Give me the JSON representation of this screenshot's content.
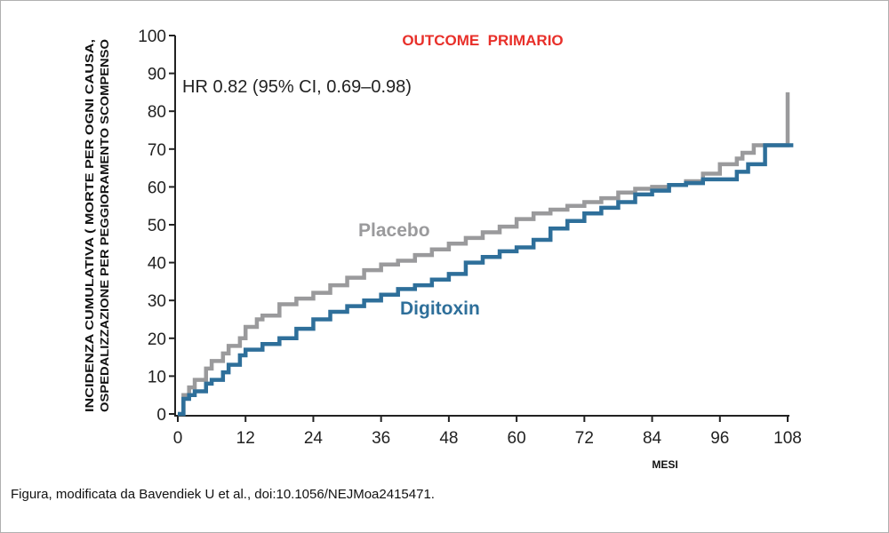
{
  "chart_data": {
    "type": "line",
    "title": "OUTCOME  PRIMARIO",
    "annotation": "HR 0.82 (95% CI, 0.69–0.98)",
    "xlabel": "MESI",
    "ylabel_lines": [
      "INCIDENZA CUMULATIVA ( MORTE PER OGNI CAUSA,",
      "OSPEDALIZZAZIONE PER PEGGIORAMENTO SCOMPENSO"
    ],
    "xlim": [
      0,
      108
    ],
    "ylim": [
      0,
      100
    ],
    "xticks": [
      0,
      12,
      24,
      36,
      48,
      60,
      72,
      84,
      96,
      108
    ],
    "yticks": [
      0,
      10,
      20,
      30,
      40,
      50,
      60,
      70,
      80,
      90,
      100
    ],
    "step": true,
    "series": [
      {
        "name": "Placebo",
        "color": "#9a9a9c",
        "x": [
          0,
          1,
          2,
          3,
          5,
          6,
          8,
          9,
          11,
          12,
          14,
          15,
          18,
          21,
          24,
          27,
          30,
          33,
          36,
          39,
          42,
          45,
          48,
          51,
          54,
          57,
          60,
          63,
          66,
          69,
          72,
          75,
          78,
          81,
          84,
          87,
          90,
          93,
          96,
          99,
          100,
          102,
          108,
          108
        ],
        "y": [
          0,
          5,
          7,
          9,
          12,
          14,
          16,
          18,
          20,
          23,
          25,
          26,
          29,
          30.5,
          32,
          34,
          36,
          38,
          39.5,
          40.5,
          42,
          43.5,
          45,
          46.5,
          48,
          49.5,
          51.5,
          53,
          54,
          55,
          56,
          57,
          58.5,
          59.5,
          60,
          60.5,
          61.5,
          63.5,
          66,
          67.5,
          69,
          71,
          71,
          85
        ]
      },
      {
        "name": "Digitoxin",
        "color": "#2e6f9a",
        "x": [
          0,
          1,
          2,
          3,
          5,
          6,
          8,
          9,
          11,
          12,
          15,
          18,
          21,
          24,
          27,
          30,
          33,
          36,
          39,
          42,
          45,
          48,
          51,
          54,
          57,
          60,
          63,
          66,
          69,
          72,
          75,
          78,
          81,
          84,
          87,
          90,
          93,
          96,
          99,
          101,
          104,
          109
        ],
        "y": [
          0,
          4,
          5,
          6,
          8,
          9,
          11,
          13,
          15.5,
          17,
          18.5,
          20,
          22.5,
          25,
          27,
          28.5,
          30,
          31.5,
          33,
          34,
          35.5,
          37,
          40,
          41.5,
          43,
          44,
          46,
          49,
          51,
          53,
          54.5,
          56,
          58,
          59,
          60.5,
          61,
          62,
          62,
          64,
          66,
          71,
          71
        ]
      }
    ]
  },
  "caption": "Figura, modificata da Bavendiek U et al., doi:10.1056/NEJMoa2415471."
}
